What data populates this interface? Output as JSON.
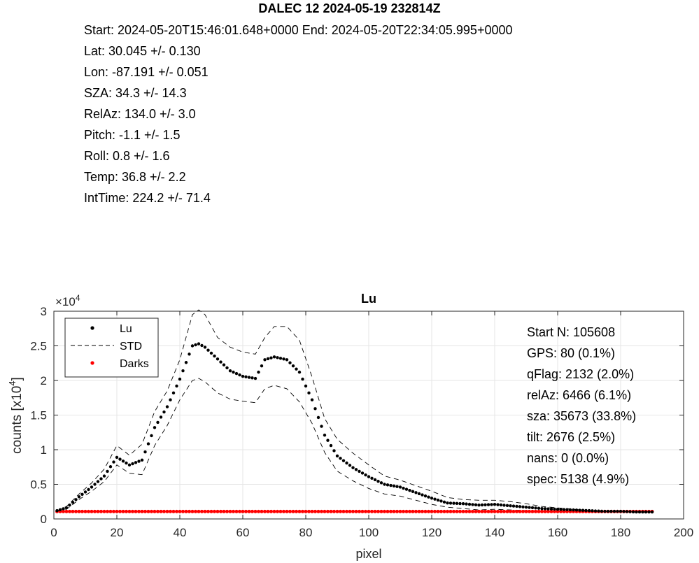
{
  "figure": {
    "title": "DALEC 12 2024-05-19 232814Z",
    "info_lines": [
      "Start: 2024-05-20T15:46:01.648+0000 End: 2024-05-20T22:34:05.995+0000",
      "Lat: 30.045 +/- 0.130",
      "Lon: -87.191 +/- 0.051",
      "SZA: 34.3 +/- 14.3",
      "RelAz: 134.0 +/- 3.0",
      "Pitch: -1.1 +/- 1.5",
      "Roll: 0.8 +/- 1.6",
      "Temp: 36.8 +/- 2.2",
      "IntTime: 224.2 +/- 71.4"
    ]
  },
  "chart_data": {
    "type": "scatter",
    "title": "Lu",
    "xlabel": "pixel",
    "ylabel": "counts [x10",
    "ylabel_sup": "4",
    "exponent_label": "×10",
    "exponent_sup": "4",
    "xlim": [
      0,
      200
    ],
    "ylim": [
      0,
      3
    ],
    "xticks": [
      "0",
      "20",
      "40",
      "60",
      "80",
      "100",
      "120",
      "140",
      "160",
      "180",
      "200"
    ],
    "yticks": [
      "0",
      "0.5",
      "1",
      "1.5",
      "2",
      "2.5",
      "3"
    ],
    "grid": true,
    "legend_position": "top-left",
    "legend": [
      "Lu",
      "STD",
      "Darks"
    ],
    "x_anchor": [
      1,
      4,
      8,
      12,
      16,
      20,
      24,
      28,
      32,
      36,
      40,
      44,
      46,
      48,
      52,
      56,
      60,
      64,
      67,
      70,
      74,
      78,
      82,
      86,
      90,
      95,
      100,
      105,
      110,
      115,
      120,
      125,
      130,
      135,
      140,
      145,
      150,
      155,
      160,
      165,
      170,
      175,
      180,
      185,
      190
    ],
    "lu": [
      0.12,
      0.16,
      0.32,
      0.46,
      0.62,
      0.89,
      0.78,
      0.85,
      1.32,
      1.62,
      2.02,
      2.5,
      2.53,
      2.48,
      2.31,
      2.14,
      2.06,
      2.03,
      2.3,
      2.34,
      2.3,
      2.12,
      1.72,
      1.21,
      0.91,
      0.74,
      0.61,
      0.5,
      0.46,
      0.38,
      0.3,
      0.23,
      0.22,
      0.2,
      0.21,
      0.19,
      0.17,
      0.15,
      0.14,
      0.13,
      0.12,
      0.11,
      0.11,
      0.1,
      0.1
    ],
    "std_upper": [
      0.12,
      0.18,
      0.36,
      0.52,
      0.72,
      1.06,
      0.92,
      1.08,
      1.55,
      1.85,
      2.3,
      2.95,
      3.02,
      2.95,
      2.62,
      2.48,
      2.41,
      2.38,
      2.62,
      2.78,
      2.78,
      2.58,
      2.05,
      1.45,
      1.15,
      0.95,
      0.78,
      0.62,
      0.56,
      0.48,
      0.4,
      0.31,
      0.28,
      0.27,
      0.27,
      0.25,
      0.22,
      0.18,
      0.16,
      0.14,
      0.12,
      0.11,
      0.11,
      0.1,
      0.1
    ],
    "std_lower": [
      0.12,
      0.14,
      0.28,
      0.4,
      0.54,
      0.78,
      0.66,
      0.64,
      1.06,
      1.35,
      1.72,
      2.0,
      2.03,
      1.98,
      1.82,
      1.73,
      1.7,
      1.68,
      1.88,
      1.93,
      1.88,
      1.69,
      1.38,
      0.96,
      0.69,
      0.55,
      0.44,
      0.36,
      0.33,
      0.27,
      0.21,
      0.17,
      0.15,
      0.13,
      0.14,
      0.13,
      0.12,
      0.11,
      0.11,
      0.11,
      0.11,
      0.1,
      0.1,
      0.1,
      0.1
    ],
    "darks_value": 0.107,
    "point_x_range": [
      1,
      190
    ],
    "point_step": 1,
    "annotations": [
      "Start N: 105608",
      "GPS: 80 (0.1%)",
      "qFlag: 2132 (2.0%)",
      "relAz: 6466 (6.1%)",
      "sza: 35673 (33.8%)",
      "tilt: 2676 (2.5%)",
      "nans: 0 (0.0%)",
      "spec: 5138 (4.9%)"
    ],
    "colors": {
      "lu": "#000000",
      "std": "#000000",
      "darks": "#ff0000",
      "grid": "#e6e6e6",
      "axis": "#262626"
    }
  }
}
